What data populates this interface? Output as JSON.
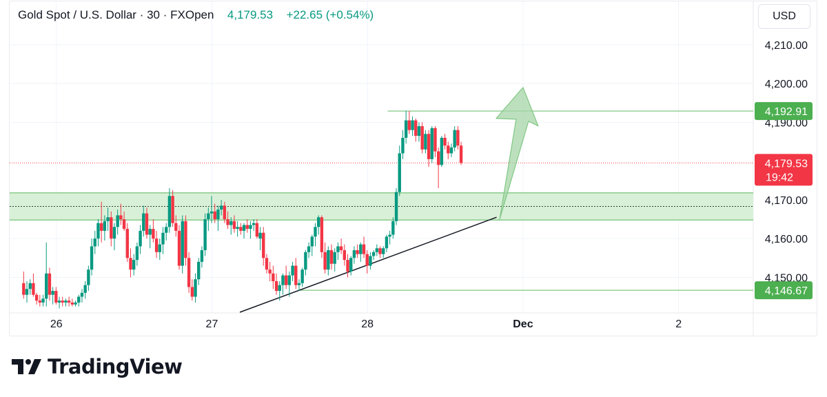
{
  "header": {
    "symbol": "Gold Spot / U.S. Dollar",
    "interval": "30",
    "broker": "FXOpen",
    "last_price": "4,179.53",
    "change": "+22.65 (+0.54%)"
  },
  "currency_button": "USD",
  "price_axis": {
    "ticks": [
      {
        "value": 4210,
        "label": "4,210.00"
      },
      {
        "value": 4200,
        "label": "4,200.00"
      },
      {
        "value": 4190,
        "label": "4,190.00"
      },
      {
        "value": 4170,
        "label": "4,170.00"
      },
      {
        "value": 4160,
        "label": "4,160.00"
      },
      {
        "value": 4150,
        "label": "4,150.00"
      }
    ],
    "badges": [
      {
        "value": 4192.91,
        "label": "4,192.91",
        "color": "#4caf50"
      },
      {
        "value": 4179.53,
        "label": "4,179.53",
        "sublabel": "19:42",
        "color": "#f23645"
      },
      {
        "value": 4146.67,
        "label": "4,146.67",
        "color": "#4caf50"
      }
    ]
  },
  "time_axis": {
    "ticks": [
      {
        "day": 26,
        "label": "26",
        "bold": false
      },
      {
        "day": 27,
        "label": "27",
        "bold": false
      },
      {
        "day": 28,
        "label": "28",
        "bold": false
      },
      {
        "day": 29,
        "label": "Dec",
        "bold": true
      },
      {
        "day": 30,
        "label": "2",
        "bold": false
      }
    ]
  },
  "colors": {
    "up": "#089981",
    "down": "#f23645",
    "zone_fill": "#d9f0d8",
    "zone_line": "#66bb6a",
    "level_line": "#81c784",
    "arrow_fill": "#a5d6a7",
    "arrow_stroke": "#81c784",
    "grid": "#f0f3fa",
    "last_price_line": "#f23645",
    "trendline": "#131722"
  },
  "chart_data": {
    "type": "candlestick",
    "title": "Gold Spot / U.S. Dollar · 30 · FXOpen",
    "x_unit": "day (Nov 26 – Dec 2), 30-minute bars",
    "ylim": [
      4141,
      4218
    ],
    "xlim": [
      25.7,
      30.48
    ],
    "bar_start": 25.79,
    "bar_step": 0.02083,
    "candles": [
      [
        4148.5,
        4151.5,
        4144.5,
        4145.5
      ],
      [
        4145.5,
        4149.0,
        4143.5,
        4147.0
      ],
      [
        4147.0,
        4149.5,
        4145.5,
        4148.5
      ],
      [
        4148.5,
        4151.0,
        4145.0,
        4145.5
      ],
      [
        4145.5,
        4146.0,
        4143.0,
        4144.0
      ],
      [
        4144.0,
        4145.5,
        4142.5,
        4143.5
      ],
      [
        4143.5,
        4145.5,
        4142.5,
        4144.5
      ],
      [
        4144.5,
        4159.0,
        4142.5,
        4151.0
      ],
      [
        4151.0,
        4152.5,
        4144.0,
        4145.5
      ],
      [
        4145.5,
        4147.5,
        4143.0,
        4146.5
      ],
      [
        4146.5,
        4147.5,
        4143.0,
        4143.5
      ],
      [
        4143.5,
        4145.0,
        4142.0,
        4144.0
      ],
      [
        4144.0,
        4145.0,
        4142.5,
        4143.5
      ],
      [
        4143.5,
        4144.5,
        4142.5,
        4144.0
      ],
      [
        4144.0,
        4145.0,
        4142.5,
        4143.5
      ],
      [
        4143.5,
        4144.5,
        4142.5,
        4143.0
      ],
      [
        4143.0,
        4144.0,
        4142.5,
        4143.5
      ],
      [
        4143.5,
        4145.5,
        4142.5,
        4145.0
      ],
      [
        4145.0,
        4147.0,
        4143.5,
        4146.0
      ],
      [
        4146.0,
        4149.0,
        4144.5,
        4148.0
      ],
      [
        4148.0,
        4153.0,
        4146.5,
        4152.0
      ],
      [
        4152.0,
        4160.0,
        4150.5,
        4158.0
      ],
      [
        4158.0,
        4162.0,
        4156.0,
        4160.0
      ],
      [
        4160.0,
        4165.0,
        4158.0,
        4164.0
      ],
      [
        4164.0,
        4169.5,
        4159.0,
        4162.0
      ],
      [
        4162.0,
        4166.0,
        4159.5,
        4164.5
      ],
      [
        4164.5,
        4168.0,
        4162.0,
        4165.5
      ],
      [
        4165.5,
        4167.0,
        4158.0,
        4160.0
      ],
      [
        4160.0,
        4164.0,
        4157.0,
        4163.0
      ],
      [
        4163.0,
        4167.5,
        4161.0,
        4166.0
      ],
      [
        4166.0,
        4169.0,
        4163.5,
        4165.0
      ],
      [
        4165.0,
        4167.0,
        4162.0,
        4162.5
      ],
      [
        4162.5,
        4164.0,
        4154.0,
        4155.0
      ],
      [
        4155.0,
        4157.5,
        4150.0,
        4152.0
      ],
      [
        4152.0,
        4156.0,
        4150.5,
        4154.5
      ],
      [
        4154.5,
        4159.0,
        4153.0,
        4158.0
      ],
      [
        4158.0,
        4163.5,
        4156.0,
        4162.0
      ],
      [
        4162.0,
        4168.5,
        4160.5,
        4166.5
      ],
      [
        4166.5,
        4168.0,
        4160.0,
        4161.0
      ],
      [
        4161.0,
        4163.5,
        4157.5,
        4162.5
      ],
      [
        4162.5,
        4165.0,
        4159.0,
        4160.0
      ],
      [
        4160.0,
        4162.0,
        4155.0,
        4156.5
      ],
      [
        4156.5,
        4160.0,
        4154.5,
        4158.5
      ],
      [
        4158.5,
        4163.0,
        4156.0,
        4161.5
      ],
      [
        4161.5,
        4164.0,
        4159.5,
        4163.0
      ],
      [
        4163.0,
        4173.0,
        4161.5,
        4171.0
      ],
      [
        4171.0,
        4172.5,
        4163.0,
        4164.0
      ],
      [
        4164.0,
        4166.0,
        4160.5,
        4162.0
      ],
      [
        4162.0,
        4163.5,
        4152.0,
        4153.0
      ],
      [
        4153.0,
        4166.0,
        4151.0,
        4164.5
      ],
      [
        4164.5,
        4166.0,
        4153.0,
        4155.0
      ],
      [
        4155.0,
        4156.5,
        4146.0,
        4147.5
      ],
      [
        4147.5,
        4149.5,
        4144.0,
        4145.0
      ],
      [
        4145.0,
        4151.0,
        4143.5,
        4149.5
      ],
      [
        4149.5,
        4155.0,
        4148.0,
        4154.0
      ],
      [
        4154.0,
        4158.0,
        4152.5,
        4157.0
      ],
      [
        4157.0,
        4166.5,
        4155.5,
        4165.0
      ],
      [
        4165.0,
        4168.0,
        4162.0,
        4166.5
      ],
      [
        4166.5,
        4171.0,
        4164.0,
        4167.0
      ],
      [
        4167.0,
        4169.0,
        4164.0,
        4165.0
      ],
      [
        4165.0,
        4168.5,
        4162.0,
        4167.5
      ],
      [
        4167.5,
        4170.0,
        4166.0,
        4168.5
      ],
      [
        4168.5,
        4169.5,
        4164.0,
        4165.0
      ],
      [
        4165.0,
        4167.0,
        4162.5,
        4163.5
      ],
      [
        4163.5,
        4165.5,
        4161.0,
        4164.5
      ],
      [
        4164.5,
        4166.0,
        4161.5,
        4162.5
      ],
      [
        4162.5,
        4164.5,
        4160.5,
        4163.0
      ],
      [
        4163.0,
        4164.0,
        4161.0,
        4162.0
      ],
      [
        4162.0,
        4164.0,
        4160.0,
        4163.5
      ],
      [
        4163.5,
        4165.0,
        4161.5,
        4162.5
      ],
      [
        4162.5,
        4164.5,
        4160.0,
        4163.5
      ],
      [
        4163.5,
        4165.0,
        4162.0,
        4164.0
      ],
      [
        4164.0,
        4165.0,
        4160.0,
        4160.5
      ],
      [
        4160.0,
        4163.0,
        4157.0,
        4161.5
      ],
      [
        4161.5,
        4163.0,
        4153.0,
        4155.0
      ],
      [
        4155.0,
        4156.0,
        4151.0,
        4152.0
      ],
      [
        4152.0,
        4154.0,
        4149.0,
        4151.0
      ],
      [
        4151.0,
        4153.0,
        4147.0,
        4149.0
      ],
      [
        4149.0,
        4151.0,
        4145.5,
        4146.5
      ],
      [
        4146.5,
        4149.0,
        4144.0,
        4148.0
      ],
      [
        4148.0,
        4151.0,
        4145.5,
        4150.5
      ],
      [
        4150.5,
        4153.0,
        4147.0,
        4148.0
      ],
      [
        4148.0,
        4151.5,
        4145.0,
        4150.5
      ],
      [
        4150.5,
        4154.0,
        4149.0,
        4153.0
      ],
      [
        4153.0,
        4155.0,
        4147.0,
        4148.0
      ],
      [
        4148.0,
        4149.5,
        4146.5,
        4148.5
      ],
      [
        4148.5,
        4152.5,
        4147.5,
        4152.0
      ],
      [
        4152.0,
        4157.0,
        4150.5,
        4156.5
      ],
      [
        4156.5,
        4159.0,
        4155.0,
        4158.0
      ],
      [
        4158.0,
        4161.0,
        4155.5,
        4160.5
      ],
      [
        4160.5,
        4164.0,
        4158.0,
        4163.0
      ],
      [
        4163.0,
        4166.0,
        4161.0,
        4165.5
      ],
      [
        4165.5,
        4166.0,
        4155.0,
        4156.5
      ],
      [
        4156.5,
        4159.0,
        4151.0,
        4152.0
      ],
      [
        4152.0,
        4158.0,
        4150.5,
        4157.0
      ],
      [
        4157.0,
        4158.5,
        4152.0,
        4153.5
      ],
      [
        4153.5,
        4157.5,
        4151.5,
        4156.5
      ],
      [
        4156.5,
        4159.0,
        4154.5,
        4158.0
      ],
      [
        4158.0,
        4160.0,
        4156.0,
        4157.0
      ],
      [
        4157.0,
        4158.5,
        4153.0,
        4154.5
      ],
      [
        4154.5,
        4156.0,
        4150.0,
        4151.5
      ],
      [
        4151.5,
        4155.5,
        4150.5,
        4155.0
      ],
      [
        4155.0,
        4158.0,
        4153.5,
        4157.0
      ],
      [
        4157.0,
        4158.5,
        4155.0,
        4156.0
      ],
      [
        4156.0,
        4159.0,
        4154.0,
        4158.5
      ],
      [
        4158.5,
        4160.5,
        4155.0,
        4156.0
      ],
      [
        4156.0,
        4157.0,
        4151.0,
        4153.0
      ],
      [
        4153.0,
        4156.5,
        4152.0,
        4155.5
      ],
      [
        4155.5,
        4157.0,
        4154.5,
        4156.5
      ],
      [
        4156.5,
        4158.5,
        4155.5,
        4157.5
      ],
      [
        4157.5,
        4158.0,
        4155.0,
        4156.0
      ],
      [
        4156.0,
        4158.0,
        4155.0,
        4157.5
      ],
      [
        4157.5,
        4161.0,
        4156.5,
        4160.5
      ],
      [
        4160.5,
        4162.0,
        4158.5,
        4161.0
      ],
      [
        4161.0,
        4165.5,
        4160.0,
        4164.5
      ],
      [
        4164.5,
        4173.0,
        4163.5,
        4172.0
      ],
      [
        4172.0,
        4184.0,
        4171.0,
        4182.0
      ],
      [
        4182.0,
        4188.0,
        4180.5,
        4186.0
      ],
      [
        4186.0,
        4193.0,
        4184.5,
        4190.5
      ],
      [
        4190.5,
        4192.91,
        4187.0,
        4188.0
      ],
      [
        4188.0,
        4191.5,
        4186.5,
        4190.5
      ],
      [
        4190.5,
        4191.0,
        4185.0,
        4186.5
      ],
      [
        4186.5,
        4190.0,
        4185.0,
        4189.0
      ],
      [
        4189.0,
        4190.0,
        4182.0,
        4183.0
      ],
      [
        4183.0,
        4188.0,
        4182.0,
        4187.0
      ],
      [
        4187.0,
        4188.0,
        4178.5,
        4180.5
      ],
      [
        4180.5,
        4189.0,
        4179.5,
        4188.5
      ],
      [
        4188.5,
        4189.0,
        4181.0,
        4182.5
      ],
      [
        4182.5,
        4183.5,
        4173.0,
        4179.0
      ],
      [
        4179.0,
        4186.5,
        4178.5,
        4186.0
      ],
      [
        4186.0,
        4187.0,
        4183.0,
        4184.0
      ],
      [
        4184.0,
        4185.0,
        4180.5,
        4182.0
      ],
      [
        4182.0,
        4184.5,
        4181.0,
        4183.5
      ],
      [
        4183.5,
        4189.0,
        4182.5,
        4188.0
      ],
      [
        4188.0,
        4189.0,
        4183.0,
        4184.0
      ],
      [
        4184.0,
        4185.0,
        4179.0,
        4179.53
      ]
    ],
    "drawings": {
      "support_zone": {
        "top": 4171.8,
        "bottom": 4164.8,
        "mid": 4168.3,
        "x_start": 25.7,
        "x_end": 30.48
      },
      "resistance_level": {
        "price": 4192.91,
        "x_start": 28.13,
        "x_end": 30.48
      },
      "support_level": {
        "price": 4146.67,
        "x_start": 27.55,
        "x_end": 30.48
      },
      "last_price_line": {
        "price": 4179.53
      },
      "trendline": {
        "from": [
          27.18,
          4141.0
        ],
        "to": [
          28.83,
          4165.5
        ]
      },
      "projection_arrow": {
        "from": [
          28.85,
          4165.0
        ],
        "to": [
          29.0,
          4199.0
        ]
      }
    }
  }
}
